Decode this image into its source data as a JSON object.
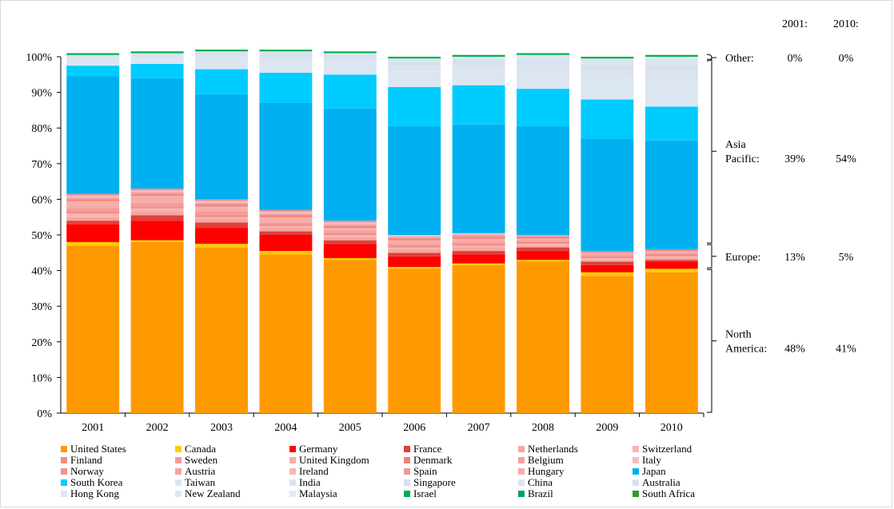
{
  "chart_data": {
    "type": "bar",
    "stacked": true,
    "normalized": true,
    "title": "",
    "xlabel": "",
    "ylabel": "",
    "ylim": [
      0,
      100
    ],
    "y_ticks": [
      "0%",
      "10%",
      "20%",
      "30%",
      "40%",
      "50%",
      "60%",
      "70%",
      "80%",
      "90%",
      "100%"
    ],
    "grid": false,
    "legend_position": "bottom",
    "categories": [
      "2001",
      "2002",
      "2003",
      "2004",
      "2005",
      "2006",
      "2007",
      "2008",
      "2009",
      "2010"
    ],
    "series": [
      {
        "name": "United States",
        "color": "#FF9900",
        "values": [
          47,
          48,
          46.5,
          44.5,
          43,
          40.5,
          41.5,
          42.5,
          38.5,
          39.5
        ]
      },
      {
        "name": "Canada",
        "color": "#FFCC00",
        "values": [
          1,
          0.5,
          1,
          1,
          0.5,
          0.5,
          0.5,
          0.5,
          1,
          1
        ]
      },
      {
        "name": "Germany",
        "color": "#FF0000",
        "values": [
          5,
          5.5,
          4.5,
          4.5,
          4,
          3,
          2.5,
          2.5,
          2,
          2
        ]
      },
      {
        "name": "France",
        "color": "#E0403A",
        "values": [
          1,
          1.5,
          1.5,
          1,
          1,
          1,
          1,
          1,
          1,
          0.5
        ]
      },
      {
        "name": "Netherlands",
        "color": "#F4A7A0",
        "values": [
          1,
          1,
          1,
          1,
          1,
          1,
          1,
          0.5,
          0.5,
          0.5
        ]
      },
      {
        "name": "Switzerland",
        "color": "#F7B4B0",
        "values": [
          1,
          1,
          0.5,
          0.5,
          0.5,
          0.5,
          0.5,
          0.5,
          0.5,
          0.5
        ]
      },
      {
        "name": "Finland",
        "color": "#F28A86",
        "values": [
          0.5,
          0.5,
          0.5,
          0.5,
          0.5,
          0.5,
          0.5,
          0.5,
          0.5,
          0.5
        ]
      },
      {
        "name": "Sweden",
        "color": "#F49C98",
        "values": [
          1,
          1,
          1,
          0.5,
          0.5,
          0.5,
          0.5,
          0.5,
          0.5,
          0.5
        ]
      },
      {
        "name": "United Kingdom",
        "color": "#F6AEAA",
        "values": [
          2,
          2,
          1.5,
          1.5,
          1,
          1,
          1,
          0.5,
          0.5,
          0.5
        ]
      },
      {
        "name": "Denmark",
        "color": "#F08080",
        "values": [
          0.5,
          0.5,
          0.5,
          0.5,
          0.5,
          0.5,
          0.5,
          0.5,
          0.5,
          0.5
        ]
      },
      {
        "name": "Belgium",
        "color": "#F2A0A0",
        "values": [
          0.5,
          0.5,
          0.5,
          0.5,
          0.5,
          0.5,
          0.5,
          0.5,
          0,
          0
        ]
      },
      {
        "name": "Italy",
        "color": "#F8BDBD",
        "values": [
          0.5,
          0.5,
          0.5,
          0.5,
          0.5,
          0.5,
          0.5,
          0,
          0,
          0
        ]
      },
      {
        "name": "Norway",
        "color": "#F39090",
        "values": [
          0.5,
          0.5,
          0.5,
          0.5,
          0.5,
          0,
          0,
          0,
          0,
          0
        ]
      },
      {
        "name": "Austria",
        "color": "#F5A3A3",
        "values": [
          0,
          0,
          0,
          0,
          0,
          0,
          0,
          0,
          0,
          0
        ]
      },
      {
        "name": "Ireland",
        "color": "#F7B8B8",
        "values": [
          0,
          0,
          0,
          0,
          0,
          0,
          0,
          0,
          0,
          0
        ]
      },
      {
        "name": "Spain",
        "color": "#F4989A",
        "values": [
          0,
          0,
          0,
          0,
          0,
          0,
          0,
          0,
          0,
          0
        ]
      },
      {
        "name": "Hungary",
        "color": "#F6ABAE",
        "values": [
          0,
          0,
          0,
          0,
          0,
          0,
          0,
          0,
          0,
          0
        ]
      },
      {
        "name": "Japan",
        "color": "#00B0F0",
        "values": [
          33,
          31,
          29.5,
          30,
          31.5,
          30.5,
          30.5,
          30.5,
          31.5,
          30.5
        ]
      },
      {
        "name": "South Korea",
        "color": "#00CCFF",
        "values": [
          3,
          4,
          7,
          8.5,
          9.5,
          11,
          11,
          10.5,
          11,
          9.5
        ]
      },
      {
        "name": "Taiwan",
        "color": "#DCE6F2",
        "values": [
          2,
          2,
          3,
          3.5,
          3.5,
          4.5,
          4.5,
          5,
          6,
          7
        ]
      },
      {
        "name": "India",
        "color": "#DAE3EF",
        "values": [
          0.5,
          0.5,
          1,
          1,
          1,
          1.5,
          1.5,
          2,
          2.5,
          3
        ]
      },
      {
        "name": "Singapore",
        "color": "#D6E0EE",
        "values": [
          0.5,
          0.5,
          0.5,
          1,
          1,
          1,
          1,
          1,
          1,
          1.5
        ]
      },
      {
        "name": "China",
        "color": "#DBE5F1",
        "values": [
          0,
          0,
          0.5,
          0.5,
          0.5,
          1,
          1,
          1.5,
          2,
          2.5
        ]
      },
      {
        "name": "Australia",
        "color": "#D9E2EE",
        "values": [
          0,
          0,
          0,
          0,
          0,
          0,
          0,
          0,
          0,
          0
        ]
      },
      {
        "name": "Hong Kong",
        "color": "#DDE6F1",
        "values": [
          0,
          0,
          0,
          0,
          0,
          0,
          0,
          0,
          0,
          0
        ]
      },
      {
        "name": "New Zealand",
        "color": "#E0E8F2",
        "values": [
          0,
          0,
          0,
          0,
          0,
          0,
          0,
          0,
          0,
          0
        ]
      },
      {
        "name": "Malaysia",
        "color": "#E2EAF3",
        "values": [
          0,
          0,
          0,
          0,
          0,
          0,
          0,
          0,
          0,
          0
        ]
      },
      {
        "name": "Israel",
        "color": "#00B050",
        "values": [
          0.5,
          0.5,
          0.5,
          0.5,
          0.5,
          0.5,
          0.5,
          0.5,
          0.5,
          0.5
        ]
      },
      {
        "name": "Brazil",
        "color": "#00A06A",
        "values": [
          0,
          0,
          0,
          0,
          0,
          0,
          0,
          0,
          0,
          0
        ]
      },
      {
        "name": "South Africa",
        "color": "#339933",
        "values": [
          0,
          0,
          0,
          0,
          0,
          0,
          0,
          0,
          0,
          0
        ]
      }
    ],
    "legend": [
      [
        "United States",
        "Canada",
        "Germany",
        "France",
        "Netherlands",
        "Switzerland"
      ],
      [
        "Finland",
        "Sweden",
        "United Kingdom",
        "Denmark",
        "Belgium",
        "Italy"
      ],
      [
        "Norway",
        "Austria",
        "Ireland",
        "Spain",
        "Hungary",
        "Japan"
      ],
      [
        "South Korea",
        "Taiwan",
        "India",
        "Singapore",
        "China",
        "Australia"
      ],
      [
        "Hong Kong",
        "New Zealand",
        "Malaysia",
        "Israel",
        "Brazil",
        "South Africa"
      ]
    ],
    "annotations": {
      "column_headers": [
        "2001:",
        "2010:"
      ],
      "groups": [
        {
          "label_lines": [
            "Other:"
          ],
          "value_2001": "0%",
          "value_2010": "0%",
          "range": [
            99.5,
            100
          ]
        },
        {
          "label_lines": [
            "Asia",
            "Pacific:"
          ],
          "value_2001": "39%",
          "value_2010": "54%",
          "range": [
            47.5,
            99.5
          ]
        },
        {
          "label_lines": [
            "Europe:"
          ],
          "value_2001": "13%",
          "value_2010": "5%",
          "range": [
            40.5,
            47.5
          ]
        },
        {
          "label_lines": [
            "North",
            "America:"
          ],
          "value_2001": "48%",
          "value_2010": "41%",
          "range": [
            0,
            40.5
          ]
        }
      ]
    }
  }
}
